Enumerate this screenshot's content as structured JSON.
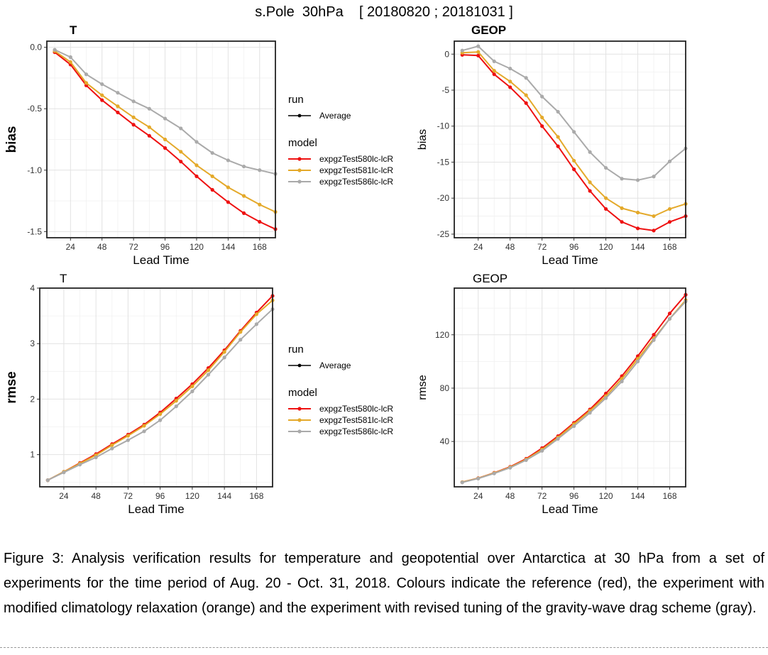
{
  "figure": {
    "title": "s.Pole  30hPa    [ 20180820 ; 20181031 ]",
    "colors": {
      "expgzTest580lc-lcR": "#ee1111",
      "expgzTest581lc-lcR": "#e4a92a",
      "expgzTest586lc-lcR": "#aaaaaa"
    }
  },
  "legends": [
    {
      "run_title": "run",
      "run_label": "Average",
      "model_title": "model",
      "models": [
        "expgzTest580lc-lcR",
        "expgzTest581lc-lcR",
        "expgzTest586lc-lcR"
      ]
    },
    {
      "run_title": "run",
      "run_label": "Average",
      "model_title": "model",
      "models": [
        "expgzTest580lc-lcR",
        "expgzTest581lc-lcR",
        "expgzTest586lc-lcR"
      ]
    }
  ],
  "chart_data": [
    {
      "type": "line",
      "title": "T",
      "xlabel": "Lead Time",
      "ylabel": "bias",
      "xlim": [
        6,
        180
      ],
      "ylim": [
        -1.55,
        0.05
      ],
      "xticks": [
        24,
        48,
        72,
        96,
        120,
        144,
        168
      ],
      "yticks": [
        -1.5,
        -1.0,
        -0.5,
        0.0
      ],
      "ytick_labels": [
        "-1.5",
        "-1.0",
        "-0.5",
        "0.0"
      ],
      "x": [
        12,
        24,
        36,
        48,
        60,
        72,
        84,
        96,
        108,
        120,
        132,
        144,
        156,
        168,
        180
      ],
      "series": [
        {
          "name": "expgzTest580lc-lcR",
          "values": [
            -0.04,
            -0.14,
            -0.31,
            -0.43,
            -0.53,
            -0.63,
            -0.72,
            -0.82,
            -0.93,
            -1.05,
            -1.16,
            -1.26,
            -1.35,
            -1.42,
            -1.48
          ]
        },
        {
          "name": "expgzTest581lc-lcR",
          "values": [
            -0.03,
            -0.12,
            -0.29,
            -0.39,
            -0.48,
            -0.57,
            -0.65,
            -0.75,
            -0.85,
            -0.96,
            -1.05,
            -1.14,
            -1.21,
            -1.28,
            -1.34
          ]
        },
        {
          "name": "expgzTest586lc-lcR",
          "values": [
            -0.02,
            -0.08,
            -0.22,
            -0.3,
            -0.37,
            -0.44,
            -0.5,
            -0.58,
            -0.66,
            -0.77,
            -0.86,
            -0.92,
            -0.97,
            -1.0,
            -1.03
          ]
        }
      ]
    },
    {
      "type": "line",
      "title": "GEOP",
      "xlabel": "Lead Time",
      "ylabel": "bias",
      "xlim": [
        6,
        180
      ],
      "ylim": [
        -25.5,
        1.8
      ],
      "xticks": [
        24,
        48,
        72,
        96,
        120,
        144,
        168
      ],
      "yticks": [
        -25,
        -20,
        -15,
        -10,
        -5,
        0
      ],
      "ytick_labels": [
        "-25",
        "-20",
        "-15",
        "-10",
        "-5",
        "0"
      ],
      "x": [
        12,
        24,
        36,
        48,
        60,
        72,
        84,
        96,
        108,
        120,
        132,
        144,
        156,
        168,
        180
      ],
      "series": [
        {
          "name": "expgzTest580lc-lcR",
          "values": [
            -0.1,
            -0.2,
            -2.8,
            -4.6,
            -6.8,
            -10.0,
            -12.8,
            -16.0,
            -19.0,
            -21.5,
            -23.3,
            -24.2,
            -24.5,
            -23.3,
            -22.5
          ]
        },
        {
          "name": "expgzTest581lc-lcR",
          "values": [
            0.2,
            0.3,
            -2.3,
            -3.8,
            -5.7,
            -8.8,
            -11.5,
            -14.8,
            -17.8,
            -20.0,
            -21.4,
            -22.0,
            -22.5,
            -21.5,
            -20.8
          ]
        },
        {
          "name": "expgzTest586lc-lcR",
          "values": [
            0.5,
            1.1,
            -1.0,
            -2.0,
            -3.3,
            -5.9,
            -8.0,
            -10.8,
            -13.6,
            -15.8,
            -17.3,
            -17.5,
            -17.0,
            -14.9,
            -13.1
          ]
        }
      ]
    },
    {
      "type": "line",
      "title": "T",
      "xlabel": "Lead Time",
      "ylabel": "rmse",
      "xlim": [
        6,
        180
      ],
      "ylim": [
        0.42,
        4.0
      ],
      "xticks": [
        24,
        48,
        72,
        96,
        120,
        144,
        168
      ],
      "yticks": [
        1,
        2,
        3,
        4
      ],
      "ytick_labels": [
        "1",
        "2",
        "3",
        "4"
      ],
      "x": [
        12,
        24,
        36,
        48,
        60,
        72,
        84,
        96,
        108,
        120,
        132,
        144,
        156,
        168,
        180
      ],
      "series": [
        {
          "name": "expgzTest580lc-lcR",
          "values": [
            0.54,
            0.69,
            0.85,
            1.01,
            1.19,
            1.36,
            1.54,
            1.76,
            2.01,
            2.27,
            2.56,
            2.88,
            3.23,
            3.56,
            3.86
          ]
        },
        {
          "name": "expgzTest581lc-lcR",
          "values": [
            0.54,
            0.69,
            0.84,
            0.99,
            1.17,
            1.34,
            1.52,
            1.73,
            1.97,
            2.23,
            2.52,
            2.85,
            3.21,
            3.53,
            3.78
          ]
        },
        {
          "name": "expgzTest586lc-lcR",
          "values": [
            0.54,
            0.68,
            0.82,
            0.95,
            1.11,
            1.26,
            1.42,
            1.62,
            1.87,
            2.14,
            2.44,
            2.75,
            3.07,
            3.35,
            3.62
          ]
        }
      ]
    },
    {
      "type": "line",
      "title": "GEOP",
      "xlabel": "Lead Time",
      "ylabel": "rmse",
      "xlim": [
        6,
        180
      ],
      "ylim": [
        6,
        155
      ],
      "xticks": [
        24,
        48,
        72,
        96,
        120,
        144,
        168
      ],
      "yticks": [
        40,
        80,
        120
      ],
      "ytick_labels": [
        "40",
        "80",
        "120"
      ],
      "x": [
        12,
        24,
        36,
        48,
        60,
        72,
        84,
        96,
        108,
        120,
        132,
        144,
        156,
        168,
        180
      ],
      "series": [
        {
          "name": "expgzTest580lc-lcR",
          "values": [
            9.5,
            12.5,
            16.5,
            21,
            27,
            35,
            44,
            54,
            64,
            76,
            89,
            104,
            120,
            136,
            150
          ]
        },
        {
          "name": "expgzTest581lc-lcR",
          "values": [
            9.5,
            12.4,
            16.3,
            20.7,
            26.5,
            34,
            43,
            53,
            63,
            74,
            87,
            102,
            117,
            132,
            146
          ]
        },
        {
          "name": "expgzTest586lc-lcR",
          "values": [
            9.3,
            12.2,
            16,
            20.3,
            26,
            33,
            42,
            51.5,
            61.5,
            72.5,
            85,
            100,
            116,
            132,
            145
          ]
        }
      ]
    }
  ],
  "caption": {
    "text": "Figure 3: Analysis verification results for temperature and geopotential over Antarctica at 30 hPa from a set of experiments for the time period of Aug. 20 - Oct. 31, 2018. Colours indicate the reference (red), the experiment with modified climatology relaxation (orange) and the experiment with revised tuning of the gravity-wave drag scheme (gray)."
  }
}
